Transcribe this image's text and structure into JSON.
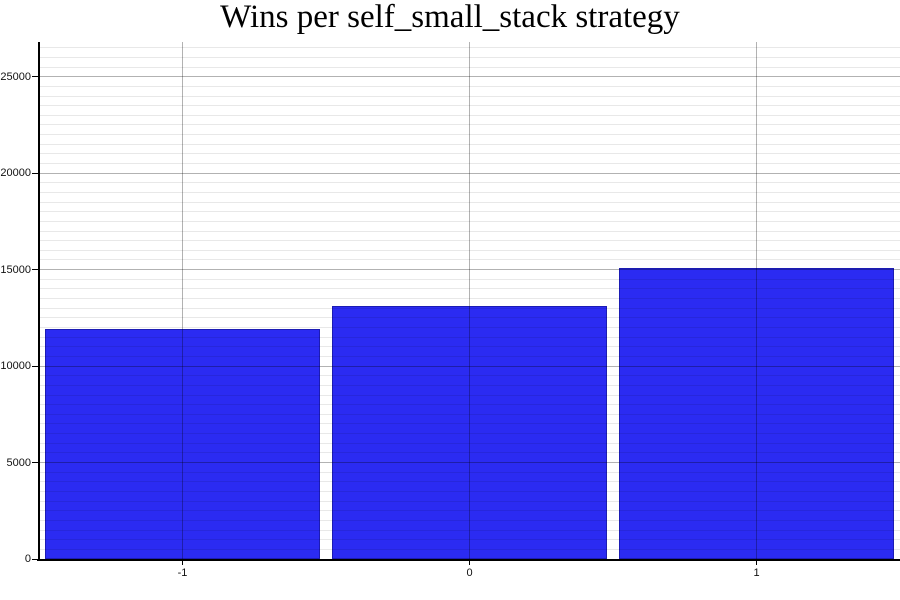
{
  "chart_data": {
    "type": "bar",
    "title": "Wins per self_small_stack strategy",
    "categories": [
      "-1",
      "0",
      "1"
    ],
    "values": [
      11900,
      13100,
      15100
    ],
    "xlabel": "",
    "ylabel": "",
    "ylim": [
      0,
      26800
    ],
    "y_major_ticks": [
      0,
      5000,
      10000,
      15000,
      20000,
      25000
    ],
    "y_minor_step": 500,
    "grid": "on",
    "legend": "none",
    "colors": {
      "bar_fill": "#2b2bf2",
      "bar_outline": "#1c1cb4",
      "axis": "#000000",
      "major_grid": "rgba(0,0,0,0.30)",
      "minor_grid": "rgba(0,0,0,0.09)",
      "background": "#ffffff",
      "text": "#111111"
    }
  }
}
